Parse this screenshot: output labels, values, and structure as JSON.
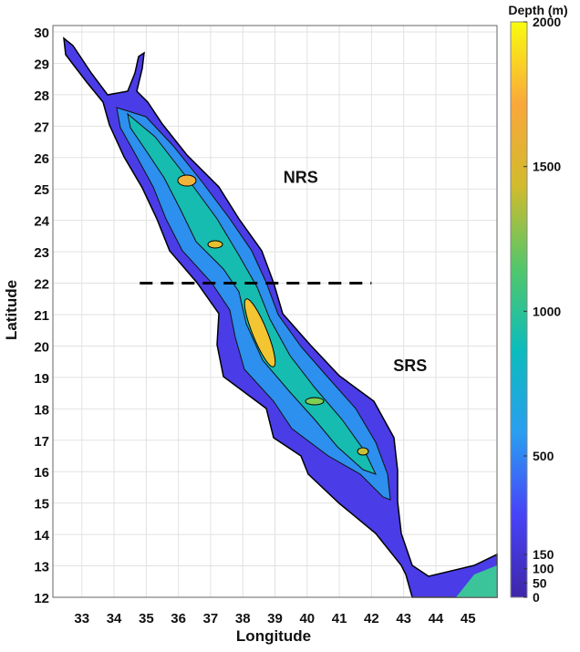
{
  "chart_data": {
    "type": "heatmap",
    "xlabel": "Longitude",
    "ylabel": "Latitude",
    "xlim": [
      32.1,
      45.9
    ],
    "ylim": [
      12,
      30
    ],
    "xticks": [
      33,
      34,
      35,
      36,
      37,
      38,
      39,
      40,
      41,
      42,
      43,
      44,
      45
    ],
    "yticks": [
      12,
      13,
      14,
      15,
      16,
      17,
      18,
      19,
      20,
      21,
      22,
      23,
      24,
      25,
      26,
      27,
      28,
      29,
      30
    ],
    "grid": true,
    "colorbar": {
      "title": "Depth (m)",
      "ticks": [
        0,
        50,
        100,
        150,
        500,
        1000,
        1500,
        2000
      ],
      "range": [
        0,
        2000
      ],
      "colors": [
        "#3e26a8",
        "#4743f8",
        "#2a9ef0",
        "#0cbcbc",
        "#52c76a",
        "#d1bb2d",
        "#f9a83a",
        "#f9fb0e"
      ]
    },
    "annotations": [
      {
        "text": "NRS",
        "lon": 39.8,
        "lat": 25.2
      },
      {
        "text": "SRS",
        "lon": 43.2,
        "lat": 19.2
      }
    ],
    "divider": {
      "lat": 22,
      "lon_from": 34.8,
      "lon_to": 42,
      "style": "dashed"
    }
  }
}
